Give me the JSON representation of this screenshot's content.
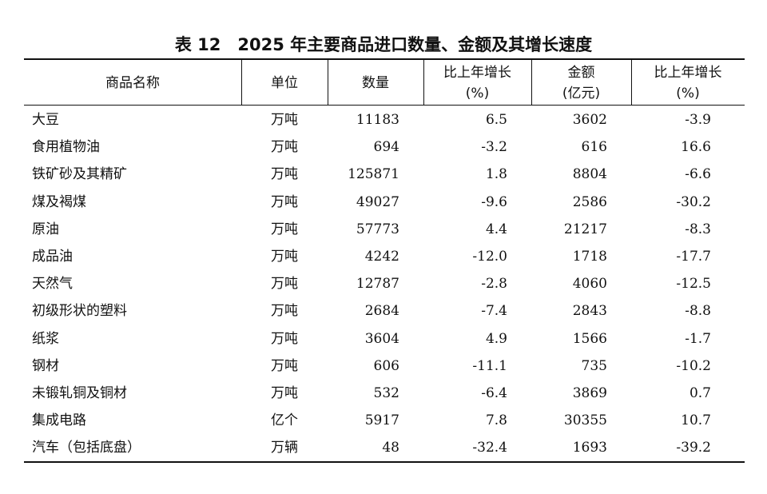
{
  "title": "表 12　2025 年主要商品进口数量、金额及其增长速度",
  "table": {
    "header": [
      [
        "商品名称"
      ],
      [
        "单位"
      ],
      [
        "数量"
      ],
      [
        "比上年增长",
        "(%)"
      ],
      [
        "金额",
        "(亿元)"
      ],
      [
        "比上年增长",
        "(%)"
      ]
    ],
    "rows": [
      [
        "大豆",
        "万吨",
        "11183",
        "6.5",
        "3602",
        "-3.9"
      ],
      [
        "食用植物油",
        "万吨",
        "694",
        "-3.2",
        "616",
        "16.6"
      ],
      [
        "铁矿砂及其精矿",
        "万吨",
        "125871",
        "1.8",
        "8804",
        "-6.6"
      ],
      [
        "煤及褐煤",
        "万吨",
        "49027",
        "-9.6",
        "2586",
        "-30.2"
      ],
      [
        "原油",
        "万吨",
        "57773",
        "4.4",
        "21217",
        "-8.3"
      ],
      [
        "成品油",
        "万吨",
        "4242",
        "-12.0",
        "1718",
        "-17.7"
      ],
      [
        "天然气",
        "万吨",
        "12787",
        "-2.8",
        "4060",
        "-12.5"
      ],
      [
        "初级形状的塑料",
        "万吨",
        "2684",
        "-7.4",
        "2843",
        "-8.8"
      ],
      [
        "纸浆",
        "万吨",
        "3604",
        "4.9",
        "1566",
        "-1.7"
      ],
      [
        "钢材",
        "万吨",
        "606",
        "-11.1",
        "735",
        "-10.2"
      ],
      [
        "未锻轧铜及铜材",
        "万吨",
        "532",
        "-6.4",
        "3869",
        "0.7"
      ],
      [
        "集成电路",
        "亿个",
        "5917",
        "7.8",
        "30355",
        "10.7"
      ],
      [
        "汽车（包括底盘）",
        "万辆",
        "48",
        "-32.4",
        "1693",
        "-39.2"
      ]
    ]
  }
}
